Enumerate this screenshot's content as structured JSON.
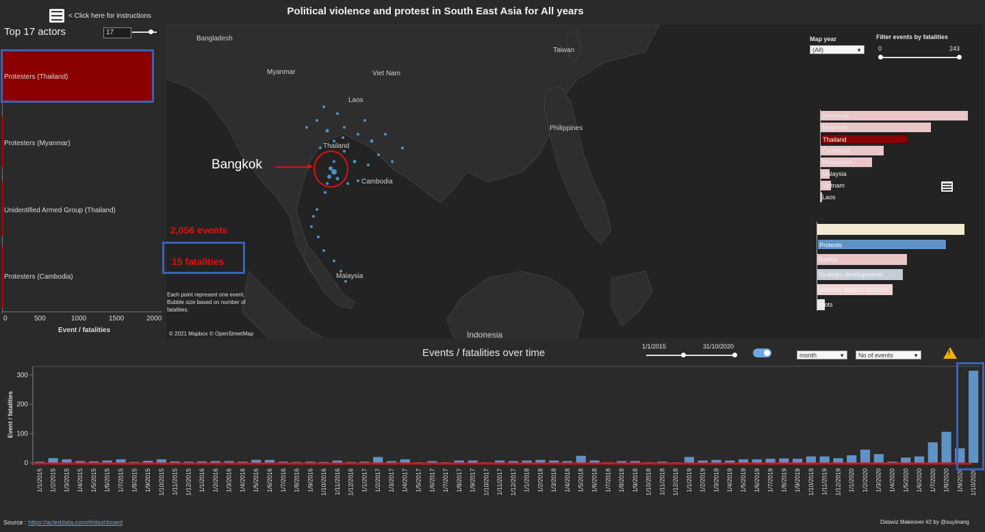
{
  "header": {
    "title": "Political violence and protest in South East Asia for All years",
    "instructions": "< Click here for instructions"
  },
  "actors": {
    "title": "Top 17 actors",
    "top_n_value": "17",
    "items": [
      {
        "label": "Protesters (Thailand)",
        "value": 2056
      },
      {
        "label": "Protesters (Myanmar)",
        "value": 20
      },
      {
        "label": "Unidentified Armed Group (Thailand)",
        "value": 12
      },
      {
        "label": "Protesters (Cambodia)",
        "value": 10
      }
    ],
    "axis_ticks": [
      "0",
      "500",
      "1000",
      "1500",
      "2000"
    ],
    "axis_title": "Event / fatalities",
    "highlight_color": "#8b0000"
  },
  "map": {
    "labels": {
      "bangladesh": "Bangladesh",
      "myanmar": "Myanmar",
      "laos": "Laos",
      "vietnam": "Viet Nam",
      "taiwan": "Taiwan",
      "thailand": "Thailand",
      "cambodia": "Cambodia",
      "philippines": "Philippines",
      "malaysia": "Malaysia",
      "indonesia": "Indonesia"
    },
    "annotation_city": "Bangkok",
    "events": "2,056 events",
    "fatalities": "15 fatalities",
    "note": "Each point represent one event. Bubble size based on number of fatalities.",
    "attribution": "© 2021 Mapbox © OpenStreetMap",
    "dot_color": "#5ba3d9"
  },
  "controls": {
    "map_year_label": "Map year",
    "map_year_value": "(All)",
    "fatal_filter_label": "Filter events by fatalities",
    "fatal_min": "0",
    "fatal_max": "243",
    "date_start": "1/1/2015",
    "date_end": "31/10/2020",
    "granularity": "month",
    "measure": "No of events"
  },
  "countries": [
    {
      "label": "Indonesia",
      "value": 1.0,
      "selected": false
    },
    {
      "label": "Myanmar",
      "value": 0.75,
      "selected": false
    },
    {
      "label": "Thailand",
      "value": 0.59,
      "selected": true
    },
    {
      "label": "Cambodia",
      "value": 0.43,
      "selected": false
    },
    {
      "label": "Philippines",
      "value": 0.35,
      "selected": false
    },
    {
      "label": "Malaysia",
      "value": 0.06,
      "selected": false
    },
    {
      "label": "Vietnam",
      "value": 0.07,
      "selected": false
    },
    {
      "label": "Laos",
      "value": 0.0,
      "selected": false
    }
  ],
  "event_types": [
    {
      "label": "",
      "value": 1.0,
      "color": "#f3ead2"
    },
    {
      "label": "Protests",
      "value": 0.88,
      "color": "#5f93c6",
      "selected": true
    },
    {
      "label": "Battles",
      "value": 0.61,
      "color": "#e8c4c6"
    },
    {
      "label": "Strategic developments",
      "value": 0.58,
      "color": "#c6ccd6"
    },
    {
      "label": "Violence against civilians",
      "value": 0.51,
      "color": "#f1d5d5"
    },
    {
      "label": "Riots",
      "value": 0.05,
      "color": "#e6e8ec"
    }
  ],
  "timeline": {
    "title": "Events /  fatalities over time"
  },
  "chart_data": {
    "type": "bar",
    "ylabel": "Event / fatalities",
    "ylim": [
      0,
      330
    ],
    "yticks": [
      0,
      100,
      200,
      300
    ],
    "categories": [
      "1/1/2015",
      "1/2/2015",
      "1/3/2015",
      "1/4/2015",
      "1/5/2015",
      "1/6/2015",
      "1/7/2015",
      "1/8/2015",
      "1/9/2015",
      "1/10/2015",
      "1/11/2015",
      "1/12/2015",
      "1/1/2016",
      "1/2/2016",
      "1/3/2016",
      "1/4/2016",
      "1/5/2016",
      "1/6/2016",
      "1/7/2016",
      "1/8/2016",
      "1/9/2016",
      "1/10/2016",
      "1/11/2016",
      "1/12/2016",
      "1/1/2017",
      "1/2/2017",
      "1/3/2017",
      "1/4/2017",
      "1/5/2017",
      "1/6/2017",
      "1/7/2017",
      "1/8/2017",
      "1/9/2017",
      "1/10/2017",
      "1/11/2017",
      "1/12/2017",
      "1/1/2018",
      "1/2/2018",
      "1/3/2018",
      "1/4/2018",
      "1/5/2018",
      "1/6/2018",
      "1/7/2018",
      "1/8/2018",
      "1/9/2018",
      "1/10/2018",
      "1/11/2018",
      "1/12/2018",
      "1/1/2019",
      "1/2/2019",
      "1/3/2019",
      "1/4/2019",
      "1/5/2019",
      "1/6/2019",
      "1/7/2019",
      "1/8/2019",
      "1/9/2019",
      "1/10/2019",
      "1/11/2019",
      "1/12/2019",
      "1/1/2020",
      "1/2/2020",
      "1/3/2020",
      "1/4/2020",
      "1/5/2020",
      "1/6/2020",
      "1/7/2020",
      "1/8/2020",
      "1/9/2020",
      "1/10/2020"
    ],
    "values": [
      4,
      16,
      12,
      6,
      5,
      8,
      12,
      3,
      7,
      12,
      5,
      4,
      5,
      6,
      6,
      4,
      10,
      10,
      4,
      3,
      4,
      3,
      8,
      3,
      4,
      20,
      6,
      12,
      2,
      6,
      2,
      8,
      8,
      2,
      8,
      6,
      8,
      10,
      8,
      6,
      24,
      8,
      2,
      6,
      6,
      2,
      4,
      2,
      20,
      8,
      10,
      8,
      12,
      12,
      14,
      15,
      14,
      22,
      22,
      16,
      26,
      45,
      30,
      4,
      18,
      22,
      70,
      106,
      50,
      315
    ],
    "bar_color": "#5f93c6",
    "trend_color": "#e01010"
  },
  "footer": {
    "source_label": "Source : ",
    "source_link": "https://acleddata.com/#/dashboard",
    "credit": "Dataviz Makeover #2 by @suyiinang"
  }
}
